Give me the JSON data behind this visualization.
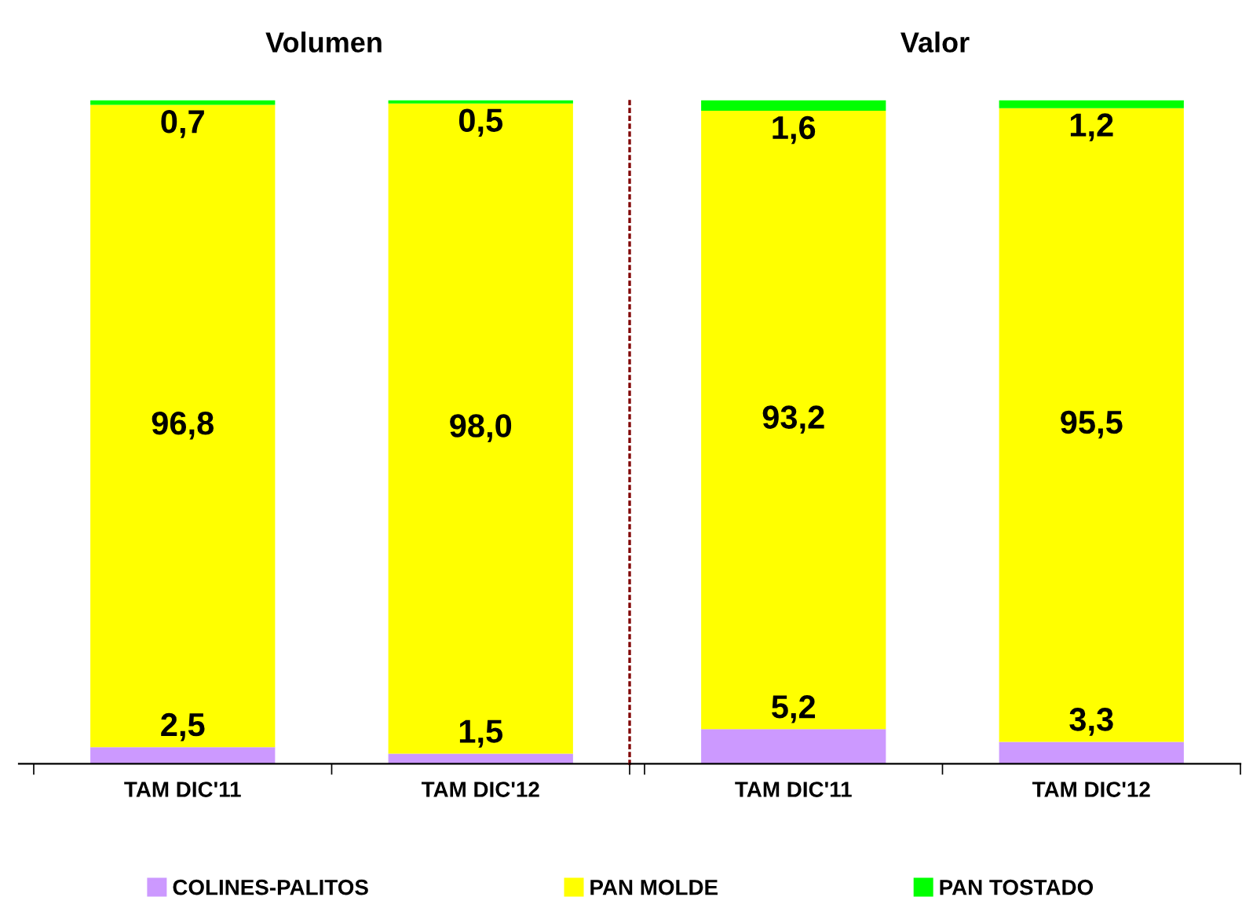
{
  "chart_data": [
    {
      "type": "bar",
      "title": "Volumen",
      "categories": [
        "TAM DIC'11",
        "TAM DIC'12"
      ],
      "stacked": true,
      "legend": "bottom",
      "series": [
        {
          "name": "COLINES-PALITOS",
          "color": "#cc99ff",
          "values": [
            2.5,
            1.5
          ],
          "value_labels": [
            "2,5",
            "1,5"
          ]
        },
        {
          "name": "PAN MOLDE",
          "color": "#ffff00",
          "values": [
            96.8,
            98.0
          ],
          "value_labels": [
            "96,8",
            "98,0"
          ]
        },
        {
          "name": "PAN TOSTADO",
          "color": "#00ff00",
          "values": [
            0.7,
            0.5
          ],
          "value_labels": [
            "0,7",
            "0,5"
          ]
        }
      ]
    },
    {
      "type": "bar",
      "title": "Valor",
      "categories": [
        "TAM DIC'11",
        "TAM DIC'12"
      ],
      "stacked": true,
      "series": [
        {
          "color": "#cc99ff",
          "values": [
            5.2,
            3.3
          ],
          "value_labels": [
            "5,2",
            "3,3"
          ]
        },
        {
          "color": "#ffff00",
          "values": [
            93.2,
            95.5
          ],
          "value_labels": [
            "93,2",
            "95,5"
          ]
        },
        {
          "color": "#00ff00",
          "values": [
            1.6,
            1.2
          ],
          "value_labels": [
            "1,6",
            "1,2"
          ]
        }
      ]
    }
  ]
}
